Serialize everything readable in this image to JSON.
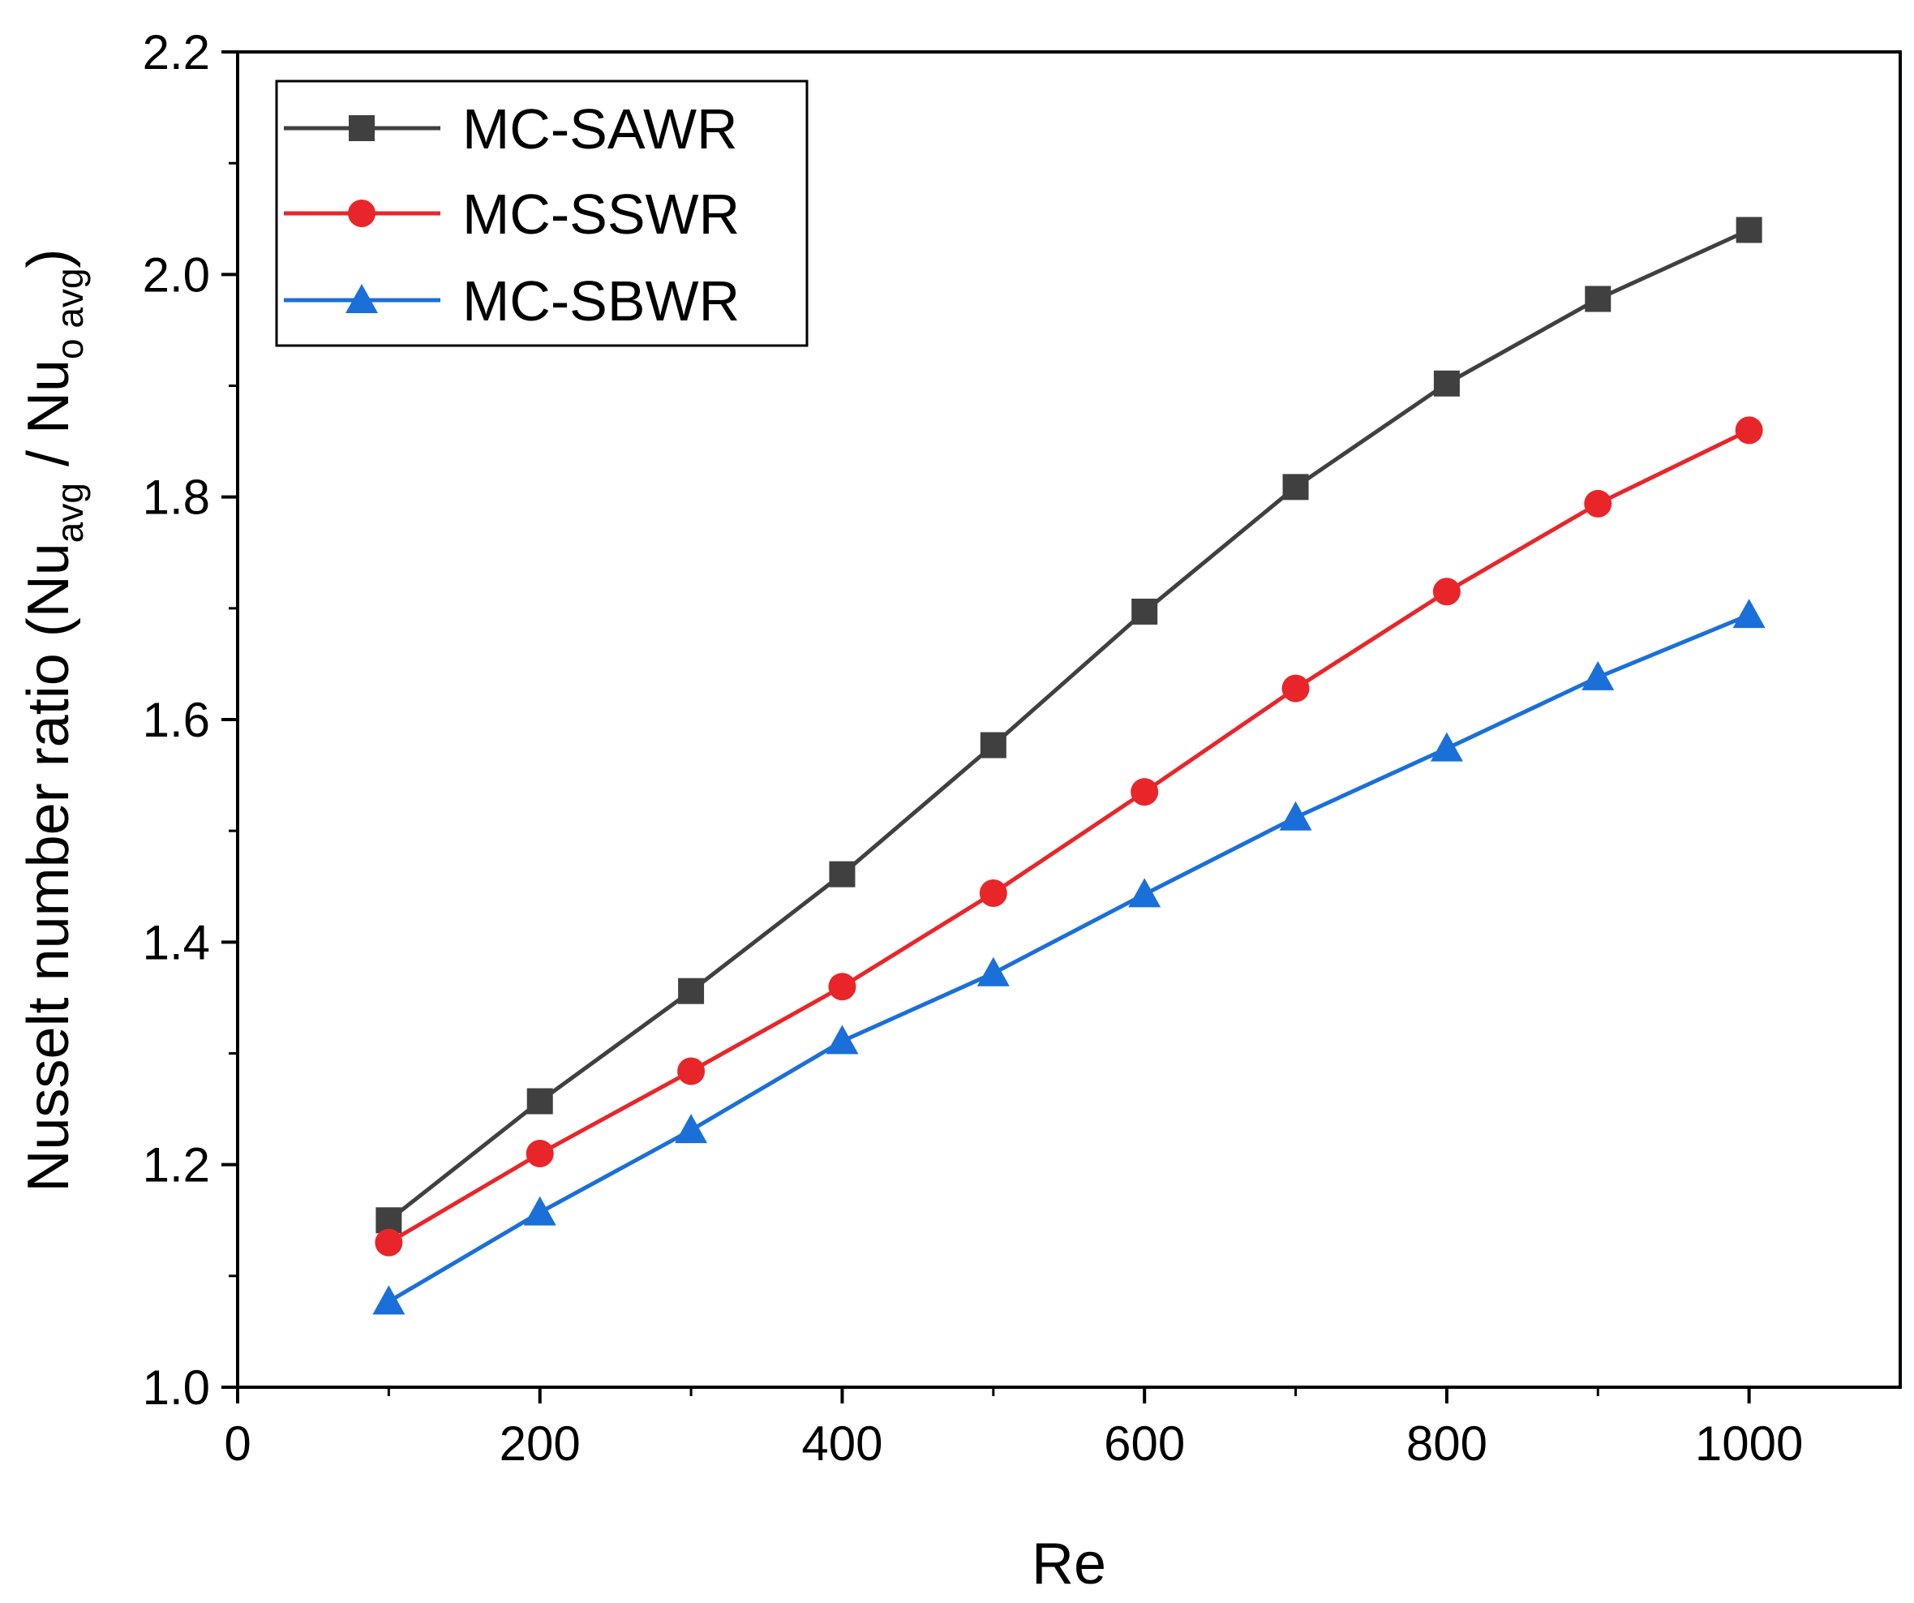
{
  "chart_data": {
    "type": "line",
    "title": "",
    "xlabel": "Re",
    "ylabel": {
      "prefix": "Nusselt number ratio (Nu",
      "sub1": "avg",
      "middle": " / Nu",
      "sub2": "o avg",
      "suffix": ")"
    },
    "xlim": [
      0,
      1100
    ],
    "ylim": [
      1.0,
      2.2
    ],
    "xticks": [
      0,
      200,
      400,
      600,
      800,
      1000
    ],
    "xtick_labels": [
      "0",
      "200",
      "400",
      "600",
      "800",
      "1000"
    ],
    "yticks": [
      1.0,
      1.2,
      1.4,
      1.6,
      1.8,
      2.0,
      2.2
    ],
    "ytick_labels": [
      "1.0",
      "1.2",
      "1.4",
      "1.6",
      "1.8",
      "2.0",
      "2.2"
    ],
    "grid": false,
    "legend_position": "top-left",
    "x": [
      100,
      200,
      300,
      400,
      500,
      600,
      700,
      800,
      900,
      1000
    ],
    "series": [
      {
        "name": "MC-SAWR",
        "marker": "square",
        "color": "#404040",
        "values": [
          1.15,
          1.257,
          1.356,
          1.461,
          1.577,
          1.697,
          1.809,
          1.902,
          1.978,
          2.04
        ]
      },
      {
        "name": "MC-SSWR",
        "marker": "circle",
        "color": "#e8262a",
        "values": [
          1.13,
          1.21,
          1.284,
          1.36,
          1.444,
          1.535,
          1.628,
          1.715,
          1.794,
          1.86
        ]
      },
      {
        "name": "MC-SBWR",
        "marker": "triangle",
        "color": "#1a6fd9",
        "values": [
          1.077,
          1.157,
          1.231,
          1.311,
          1.372,
          1.443,
          1.512,
          1.574,
          1.638,
          1.694
        ]
      }
    ]
  }
}
